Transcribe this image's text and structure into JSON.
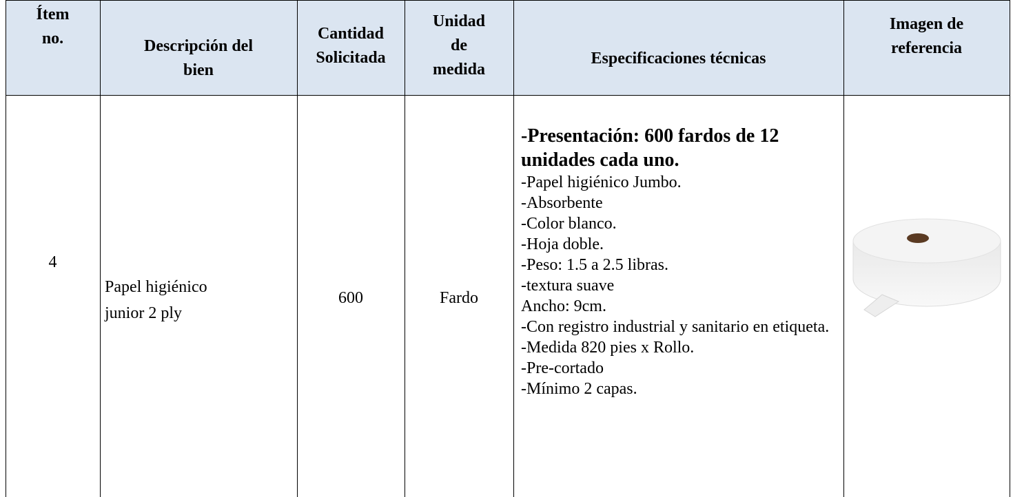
{
  "table": {
    "headers": [
      [
        "Ítem",
        "no."
      ],
      [
        "Descripción del",
        "bien"
      ],
      [
        "Cantidad",
        "Solicitada"
      ],
      [
        "Unidad",
        "de",
        "medida"
      ],
      [
        "Especificaciones técnicas"
      ],
      [
        "Imagen de",
        "referencia"
      ]
    ],
    "rows": [
      {
        "item": 4,
        "description": [
          "Papel higiénico",
          "junior 2 ply"
        ],
        "quantity": 600,
        "unit": "Fardo",
        "specs": [
          "-Presentación: 600 fardos de 12 unidades cada uno.",
          "-Papel higiénico Jumbo.",
          "-Absorbente",
          "-Color blanco.",
          "-Hoja doble.",
          "-Peso: 1.5 a 2.5 libras.",
          "-textura suave",
          "Ancho: 9cm.",
          "-Con registro industrial y sanitario en etiqueta.",
          "-Medida 820 pies x Rollo.",
          "-Pre-cortado",
          "-Mínimo 2 capas."
        ]
      }
    ]
  }
}
